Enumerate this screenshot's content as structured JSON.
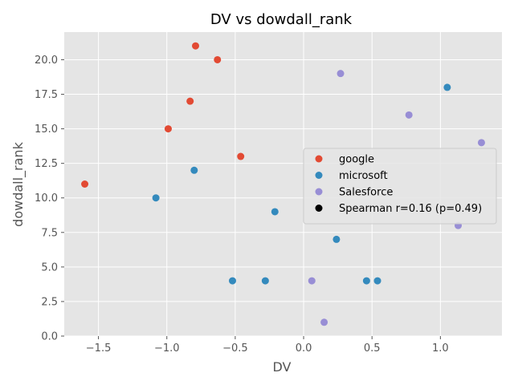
{
  "chart_data": {
    "type": "scatter",
    "title": "DV vs dowdall_rank",
    "xlabel": "DV",
    "ylabel": "dowdall_rank",
    "xlim": [
      -1.75,
      1.45
    ],
    "ylim": [
      0,
      22
    ],
    "xticks": [
      -1.5,
      -1.0,
      -0.5,
      0.0,
      0.5,
      1.0
    ],
    "xtick_labels": [
      "−1.5",
      "−1.0",
      "−0.5",
      "0.0",
      "0.5",
      "1.0"
    ],
    "yticks": [
      0,
      2.5,
      5,
      7.5,
      10,
      12.5,
      15,
      17.5,
      20
    ],
    "ytick_labels": [
      "0.0",
      "2.5",
      "5.0",
      "7.5",
      "10.0",
      "12.5",
      "15.0",
      "17.5",
      "20.0"
    ],
    "grid": true,
    "legend_position": "center-right",
    "series": [
      {
        "name": "google",
        "color": "#E24A33",
        "points": [
          {
            "x": -1.6,
            "y": 11
          },
          {
            "x": -0.99,
            "y": 15
          },
          {
            "x": -0.83,
            "y": 17
          },
          {
            "x": -0.79,
            "y": 21
          },
          {
            "x": -0.63,
            "y": 20
          },
          {
            "x": -0.46,
            "y": 13
          }
        ]
      },
      {
        "name": "microsoft",
        "color": "#348ABD",
        "points": [
          {
            "x": -1.08,
            "y": 10
          },
          {
            "x": -0.8,
            "y": 12
          },
          {
            "x": -0.52,
            "y": 4
          },
          {
            "x": -0.28,
            "y": 4
          },
          {
            "x": -0.21,
            "y": 9
          },
          {
            "x": 0.24,
            "y": 7
          },
          {
            "x": 0.46,
            "y": 4
          },
          {
            "x": 0.54,
            "y": 4
          },
          {
            "x": 1.05,
            "y": 18
          }
        ]
      },
      {
        "name": "Salesforce",
        "color": "#988ED5",
        "points": [
          {
            "x": 0.06,
            "y": 4
          },
          {
            "x": 0.15,
            "y": 1
          },
          {
            "x": 0.27,
            "y": 19
          },
          {
            "x": 0.77,
            "y": 16
          },
          {
            "x": 1.13,
            "y": 8
          },
          {
            "x": 1.3,
            "y": 14
          }
        ]
      }
    ],
    "annotation": {
      "label": "Spearman r=0.16 (p=0.49)",
      "color": "#000000"
    },
    "colors": {
      "plot_background": "#E5E5E5",
      "grid": "#FFFFFF",
      "figure_background": "#FFFFFF"
    }
  }
}
